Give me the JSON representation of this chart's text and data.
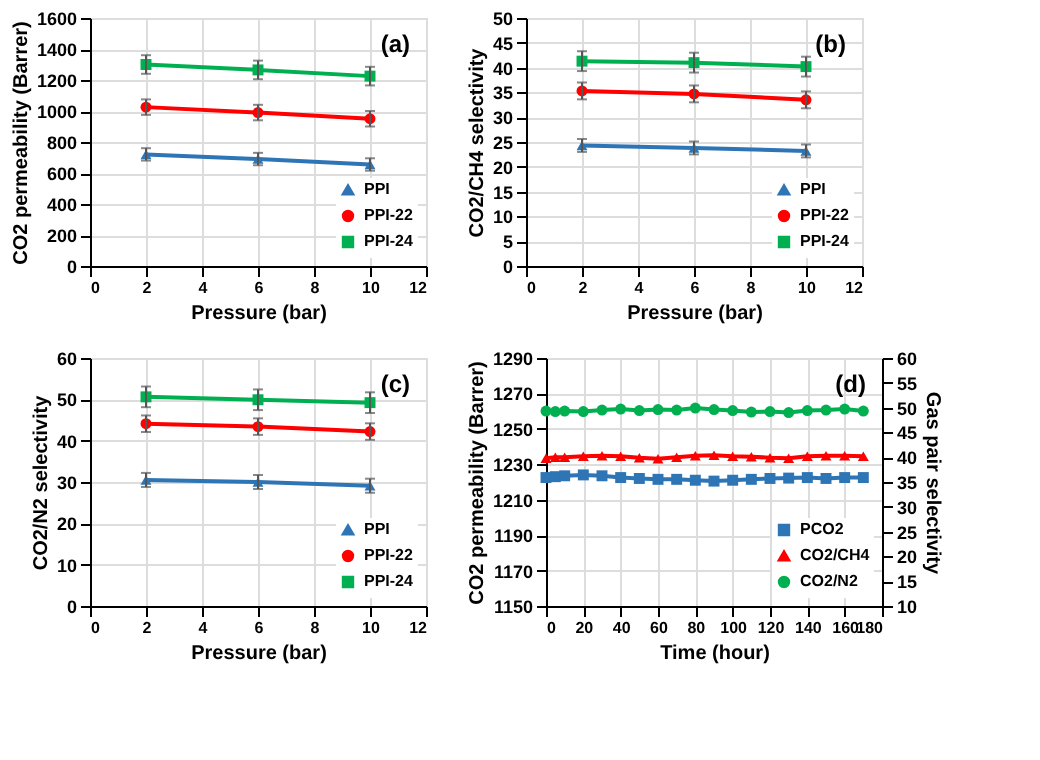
{
  "chart_data": [
    {
      "type": "line",
      "xlabel": "Pressure (bar)",
      "ylabel": "CO2 permeability (Barrer)",
      "annotations": [
        "(a)"
      ],
      "x": [
        2,
        6,
        10
      ],
      "xlim": [
        0,
        12
      ],
      "xticks": [
        0,
        2,
        4,
        6,
        8,
        10,
        12
      ],
      "ylim": [
        0,
        1600
      ],
      "yticks": [
        0,
        200,
        400,
        600,
        800,
        1000,
        1200,
        1400,
        1600
      ],
      "grid": true,
      "legend": "bottom right",
      "series": [
        {
          "name": "PPI",
          "color": "#2e75b6",
          "marker": "triangle",
          "values": [
            720,
            690,
            655
          ],
          "errors": [
            40,
            40,
            40
          ]
        },
        {
          "name": "PPI-22",
          "color": "#ff0000",
          "marker": "circle",
          "values": [
            1025,
            990,
            950
          ],
          "errors": [
            50,
            50,
            50
          ]
        },
        {
          "name": "PPI-24",
          "color": "#00b050",
          "marker": "square",
          "values": [
            1300,
            1265,
            1225
          ],
          "errors": [
            60,
            60,
            60
          ]
        }
      ]
    },
    {
      "type": "line",
      "xlabel": "Pressure (bar)",
      "ylabel": "CO2/CH4  selectivity",
      "annotations": [
        "(b)"
      ],
      "x": [
        2,
        6,
        10
      ],
      "xlim": [
        0,
        12
      ],
      "xticks": [
        0,
        2,
        4,
        6,
        8,
        10,
        12
      ],
      "ylim": [
        0,
        50
      ],
      "yticks": [
        0,
        5,
        10,
        15,
        20,
        25,
        30,
        35,
        40,
        45,
        50
      ],
      "grid": true,
      "legend": "bottom right",
      "series": [
        {
          "name": "PPI",
          "color": "#2e75b6",
          "marker": "triangle",
          "values": [
            24.3,
            23.8,
            23.2
          ],
          "errors": [
            1.3,
            1.3,
            1.3
          ]
        },
        {
          "name": "PPI-22",
          "color": "#ff0000",
          "marker": "circle",
          "values": [
            35.3,
            34.7,
            33.5
          ],
          "errors": [
            1.7,
            1.7,
            1.7
          ]
        },
        {
          "name": "PPI-24",
          "color": "#00b050",
          "marker": "square",
          "values": [
            41.3,
            41.0,
            40.2
          ],
          "errors": [
            2,
            2,
            2
          ]
        }
      ]
    },
    {
      "type": "line",
      "xlabel": "Pressure (bar)",
      "ylabel": "CO2/N2 selectivity",
      "annotations": [
        "(c)"
      ],
      "x": [
        2,
        6,
        10
      ],
      "xlim": [
        0,
        12
      ],
      "xticks": [
        0,
        2,
        4,
        6,
        8,
        10,
        12
      ],
      "ylim": [
        0,
        60
      ],
      "yticks": [
        0,
        10,
        20,
        30,
        40,
        50,
        60
      ],
      "grid": true,
      "legend": "bottom right",
      "series": [
        {
          "name": "PPI",
          "color": "#2e75b6",
          "marker": "triangle",
          "values": [
            30.5,
            30.0,
            29.1
          ],
          "errors": [
            1.7,
            1.7,
            1.7
          ]
        },
        {
          "name": "PPI-22",
          "color": "#ff0000",
          "marker": "circle",
          "values": [
            44.1,
            43.4,
            42.2
          ],
          "errors": [
            2,
            2,
            2
          ]
        },
        {
          "name": "PPI-24",
          "color": "#00b050",
          "marker": "square",
          "values": [
            50.6,
            49.9,
            49.2
          ],
          "errors": [
            2.5,
            2.5,
            2.5
          ]
        }
      ]
    },
    {
      "type": "line",
      "xlabel": "Time (hour)",
      "ylabel": "CO2 permeability (Barrer)",
      "y2label": "Gas pair selectivity",
      "annotations": [
        "(d)"
      ],
      "x": [
        0,
        5,
        10,
        20,
        30,
        40,
        50,
        60,
        70,
        80,
        90,
        100,
        110,
        120,
        130,
        140,
        150,
        160,
        170
      ],
      "xlim": [
        0,
        180
      ],
      "xticks": [
        0,
        20,
        40,
        60,
        80,
        100,
        120,
        140,
        160,
        180
      ],
      "ylim": [
        1150,
        1290
      ],
      "yticks": [
        1150,
        1170,
        1190,
        1210,
        1230,
        1250,
        1270,
        1290
      ],
      "y2lim": [
        10,
        60
      ],
      "y2ticks": [
        10,
        15,
        20,
        25,
        30,
        35,
        40,
        45,
        50,
        55,
        60
      ],
      "grid": true,
      "legend": "bottom right",
      "series": [
        {
          "name": "PCO2",
          "color": "#2e75b6",
          "marker": "square",
          "values": [
            1222.5,
            1223,
            1223.5,
            1224,
            1223.5,
            1222.5,
            1222,
            1221.5,
            1221.5,
            1221,
            1220.5,
            1221,
            1221.5,
            1222,
            1222.2,
            1222.5,
            1222,
            1222.5,
            1222.5
          ]
        },
        {
          "name": "CO2/CH4",
          "color": "#ff0000",
          "marker": "triangle",
          "axis": "y2",
          "values": [
            39.8,
            40,
            40,
            40.2,
            40.3,
            40.2,
            39.9,
            39.7,
            40,
            40.3,
            40.4,
            40.2,
            40.1,
            39.9,
            39.8,
            40.2,
            40.3,
            40.3,
            40.2
          ]
        },
        {
          "name": "CO2/N2",
          "color": "#00b050",
          "marker": "circle",
          "axis": "y2",
          "values": [
            49.3,
            49.2,
            49.3,
            49.2,
            49.5,
            49.7,
            49.4,
            49.6,
            49.5,
            49.9,
            49.6,
            49.4,
            49.1,
            49.2,
            49.0,
            49.4,
            49.5,
            49.7,
            49.3
          ]
        }
      ]
    }
  ]
}
